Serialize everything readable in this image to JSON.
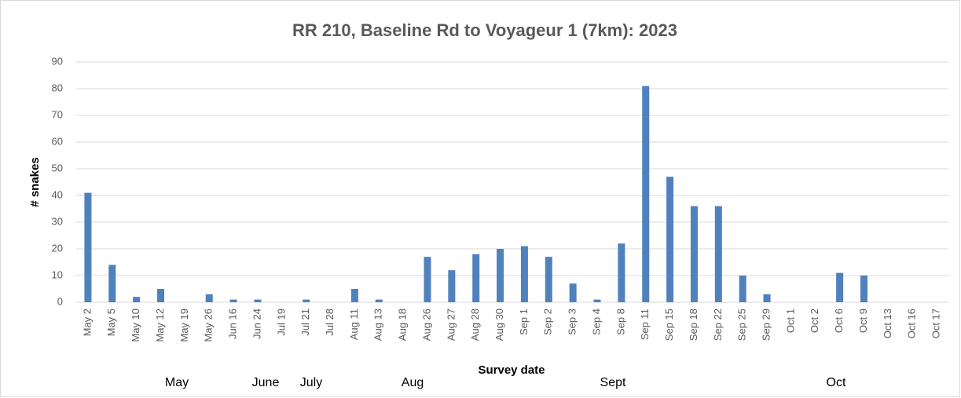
{
  "chart_data": {
    "type": "bar",
    "title": "RR 210,  Baseline Rd to Voyageur 1  (7km):   2023",
    "x_label": "Survey date",
    "y_label": "# snakes",
    "categories": [
      "May 2",
      "May 5",
      "May 10",
      "May 12",
      "May 19",
      "May 26",
      "Jun 16",
      "Jun 24",
      "Jul 19",
      "Jul 21",
      "Jul 28",
      "Aug 11",
      "Aug 13",
      "Aug 18",
      "Aug 26",
      "Aug 27",
      "Aug 28",
      "Aug 30",
      "Sep 1",
      "Sep 2",
      "Sep 3",
      "Sep 4",
      "Sep 8",
      "Sep 11",
      "Sep 15",
      "Sep 18",
      "Sep 22",
      "Sep 25",
      "Sep 29",
      "Oct 1",
      "Oct 2",
      "Oct 6",
      "Oct 9",
      "Oct 13",
      "Oct 16",
      "Oct 17"
    ],
    "values": [
      41,
      14,
      2,
      5,
      0,
      3,
      1,
      1,
      0,
      1,
      0,
      5,
      1,
      0,
      17,
      12,
      18,
      20,
      21,
      17,
      7,
      1,
      22,
      81,
      47,
      36,
      36,
      10,
      3,
      0,
      0,
      11,
      10,
      0,
      0,
      0
    ],
    "color": "#4f81bd",
    "month_labels": [
      "May",
      "June",
      "July",
      "Aug",
      "Sept",
      "Oct"
    ],
    "ylim": [
      0,
      90
    ],
    "yticks": [
      0,
      10,
      20,
      30,
      40,
      50,
      60,
      70,
      80,
      90
    ],
    "grid": true
  }
}
